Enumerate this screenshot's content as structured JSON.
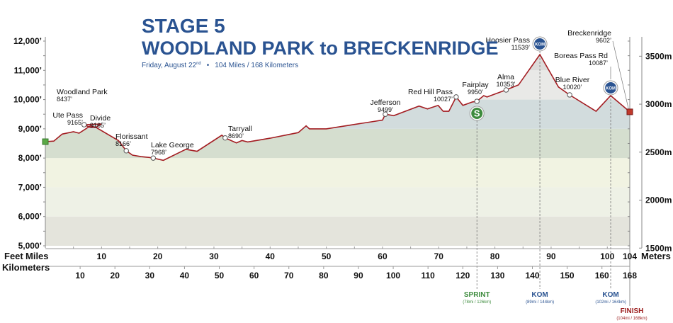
{
  "header": {
    "stage": "STAGE 5",
    "route": "WOODLAND PARK to BRECKENRIDGE",
    "date": "Friday, August 22",
    "date_sup": "nd",
    "bullet": "•",
    "distance": "104 Miles / 168 Kilometers"
  },
  "colors": {
    "title": "#2a5391",
    "profile_line": "#a31d22",
    "sprint": "#3d8b3d",
    "kom": "#2a5391",
    "finish": "#9b1c1c",
    "start_marker": "#5aa845"
  },
  "chart_data": {
    "type": "area",
    "title": "STAGE 5 WOODLAND PARK to BRECKENRIDGE",
    "ylabel_left": "Feet",
    "ylabel_right": "Meters",
    "xlabel_top": "Miles",
    "xlabel_bottom": "Kilometers",
    "ylim_ft": [
      5000,
      12000
    ],
    "xlim_miles": [
      0,
      104
    ],
    "xlim_km": [
      0,
      168
    ],
    "y_ticks_ft": [
      "5,000’",
      "6,000’",
      "7,000’",
      "8,000’",
      "9,000’",
      "10,000’",
      "11,000’",
      "12,000’"
    ],
    "y_tick_values_ft": [
      5000,
      6000,
      7000,
      8000,
      9000,
      10000,
      11000,
      12000
    ],
    "y_ticks_m": [
      "1500m",
      "2000m",
      "2500m",
      "3000m",
      "3500m"
    ],
    "y_tick_values_m": [
      1500,
      2000,
      2500,
      3000,
      3500
    ],
    "x_ticks_miles": [
      "10",
      "20",
      "30",
      "40",
      "50",
      "60",
      "70",
      "80",
      "90",
      "100",
      "104"
    ],
    "x_tick_values_miles": [
      10,
      20,
      30,
      40,
      50,
      60,
      70,
      80,
      90,
      100,
      104
    ],
    "x_ticks_km": [
      "10",
      "20",
      "30",
      "40",
      "50",
      "60",
      "70",
      "80",
      "90",
      "100",
      "110",
      "120",
      "130",
      "140",
      "150",
      "160",
      "168"
    ],
    "x_tick_values_km": [
      10,
      20,
      30,
      40,
      50,
      60,
      70,
      80,
      90,
      100,
      110,
      120,
      130,
      140,
      150,
      160,
      168
    ],
    "profile": {
      "miles": [
        0,
        1.5,
        3,
        5,
        6,
        8,
        9,
        10,
        6.9,
        8,
        9,
        13,
        14.4,
        15.5,
        17,
        18.5,
        19.2,
        21,
        25,
        27,
        31.4,
        32,
        34,
        35,
        36,
        37.5,
        40,
        45,
        46.4,
        47,
        50,
        55,
        60,
        60.5,
        62,
        66.5,
        68,
        69.9,
        70.8,
        71.8,
        73.1,
        74.3,
        76,
        76.8,
        78,
        78.6,
        82,
        84.2,
        88,
        91.3,
        93.3,
        98,
        100.6,
        104
      ],
      "elevation_ft": [
        8560,
        8580,
        8820,
        8900,
        8850,
        9100,
        9050,
        9165,
        9140,
        9050,
        9050,
        8600,
        8250,
        8100,
        8050,
        8020,
        8000,
        7920,
        8300,
        8230,
        8780,
        8690,
        8520,
        8600,
        8550,
        8600,
        8680,
        8870,
        9100,
        9000,
        9000,
        9150,
        9300,
        9500,
        9450,
        9780,
        9680,
        9800,
        9600,
        9600,
        10090,
        9800,
        9920,
        9940,
        10135,
        10090,
        10330,
        10500,
        11540,
        10430,
        10160,
        9600,
        10135,
        9580
      ]
    },
    "bands_ft": [
      [
        5000,
        6000
      ],
      [
        6000,
        7000
      ],
      [
        7000,
        8000
      ],
      [
        8000,
        9000
      ],
      [
        9000,
        10000
      ],
      [
        10000,
        11000
      ],
      [
        11000,
        12000
      ]
    ],
    "band_colors": [
      "#e4e4dc",
      "#eef1e6",
      "#f1f3e2",
      "#d5decf",
      "#d2dcdd",
      "#e9e9e7",
      "#dcdcda"
    ],
    "annotations": [
      {
        "name": "Woodland Park",
        "elev": "8437’",
        "mile": 0,
        "ft": 8560,
        "point": false
      },
      {
        "name": "Ute Pass",
        "elev": "9165’",
        "mile": 6.9,
        "ft": 9140,
        "point": true
      },
      {
        "name": "Divide",
        "elev": "9165’",
        "mile": 6.9,
        "ft": 9140,
        "point": false
      },
      {
        "name": "Florissant",
        "elev": "8166’",
        "mile": 14.4,
        "ft": 8250,
        "point": true
      },
      {
        "name": "Lake George",
        "elev": "7968’",
        "mile": 19.2,
        "ft": 8000,
        "point": true
      },
      {
        "name": "Tarryall",
        "elev": "8690’",
        "mile": 32,
        "ft": 8690,
        "point": true
      },
      {
        "name": "Jefferson",
        "elev": "9499’",
        "mile": 60.5,
        "ft": 9500,
        "point": true
      },
      {
        "name": "Red Hill Pass",
        "elev": "10027’",
        "mile": 73.1,
        "ft": 10090,
        "point": true
      },
      {
        "name": "Fairplay",
        "elev": "9950’",
        "mile": 76.8,
        "ft": 9940,
        "point": true
      },
      {
        "name": "Alma",
        "elev": "10353’",
        "mile": 82,
        "ft": 10330,
        "point": true
      },
      {
        "name": "Hoosier Pass",
        "elev": "11539’",
        "mile": 88,
        "ft": 11540,
        "point": false
      },
      {
        "name": "Blue River",
        "elev": "10020’",
        "mile": 93.3,
        "ft": 10160,
        "point": true
      },
      {
        "name": "Boreas Pass Rd",
        "elev": "10087’",
        "mile": 100.6,
        "ft": 10135,
        "point": false
      },
      {
        "name": "Breckenridge",
        "elev": "9602’",
        "mile": 104,
        "ft": 9580,
        "point": false
      }
    ],
    "markers": [
      {
        "type": "sprint",
        "icon": "S",
        "label": "SPRINT",
        "detail": "(78mi / 126km)",
        "mile": 76.8,
        "ft": 9940
      },
      {
        "type": "kom",
        "icon": "KOM",
        "label": "KOM",
        "detail": "(89mi / 144km)",
        "mile": 88,
        "ft": 11540
      },
      {
        "type": "kom",
        "icon": "KOM",
        "label": "KOM",
        "detail": "(102mi / 164km)",
        "mile": 100.6,
        "ft": 10135
      },
      {
        "type": "finish",
        "icon": "",
        "label": "FINISH",
        "detail": "(104mi / 168km)",
        "mile": 104,
        "ft": 9580
      }
    ]
  }
}
